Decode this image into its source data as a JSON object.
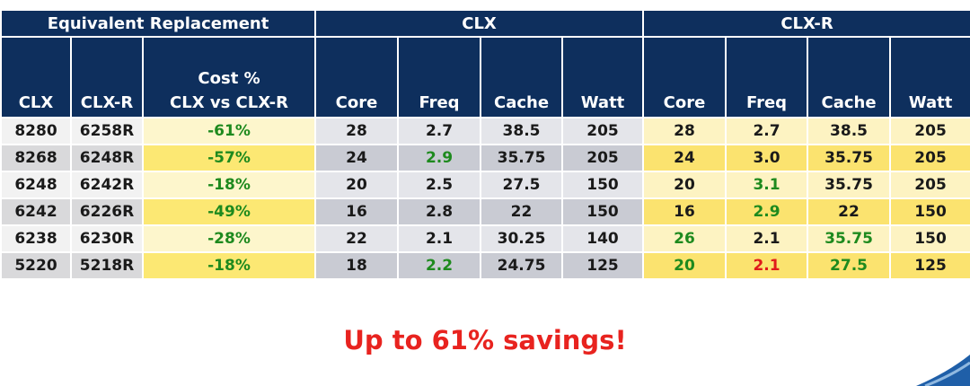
{
  "table": {
    "group_headers": [
      "Equivalent Replacement",
      "CLX",
      "CLX-R"
    ],
    "columns": [
      "CLX",
      "CLX-R",
      "Cost %\nCLX vs CLX-R",
      "Core",
      "Freq",
      "Cache",
      "Watt",
      "Core",
      "Freq",
      "Cache",
      "Watt"
    ],
    "rows": [
      [
        "8280",
        "6258R",
        "-61%",
        "28",
        "2.7",
        "38.5",
        "205",
        "28",
        "2.7",
        "38.5",
        "205"
      ],
      [
        "8268",
        "6248R",
        "-57%",
        "24",
        "2.9",
        "35.75",
        "205",
        "24",
        "3.0",
        "35.75",
        "205"
      ],
      [
        "6248",
        "6242R",
        "-18%",
        "20",
        "2.5",
        "27.5",
        "150",
        "20",
        "3.1",
        "35.75",
        "205"
      ],
      [
        "6242",
        "6226R",
        "-49%",
        "16",
        "2.8",
        "22",
        "150",
        "16",
        "2.9",
        "22",
        "150"
      ],
      [
        "6238",
        "6230R",
        "-28%",
        "22",
        "2.1",
        "30.25",
        "140",
        "26",
        "2.1",
        "35.75",
        "150"
      ],
      [
        "5220",
        "5218R",
        "-18%",
        "18",
        "2.2",
        "24.75",
        "125",
        "20",
        "2.1",
        "27.5",
        "125"
      ]
    ]
  },
  "footer": {
    "text": "Up to 61% savings!"
  }
}
